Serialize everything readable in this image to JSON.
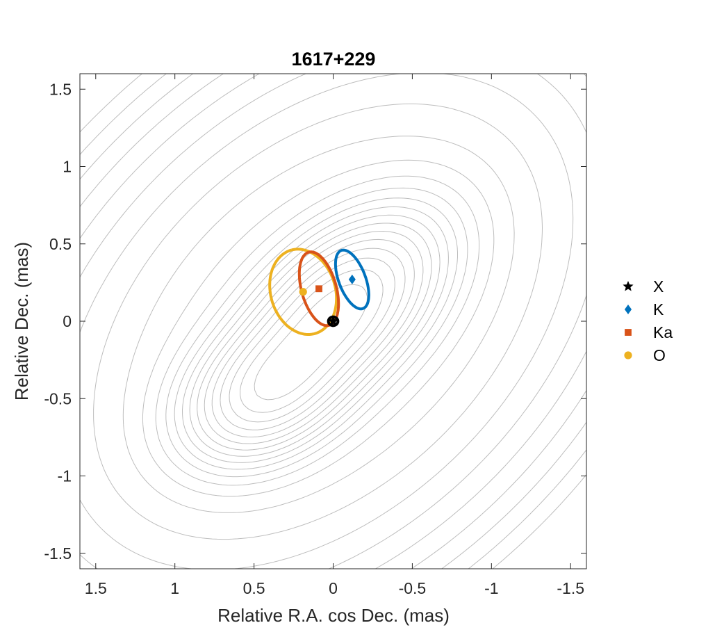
{
  "chart_data": {
    "type": "scatter",
    "title": "1617+229",
    "xlabel": "Relative R.A. cos Dec. (mas)",
    "ylabel": "Relative Dec. (mas)",
    "xlim": [
      1.6,
      -1.6
    ],
    "ylim": [
      -1.6,
      1.6
    ],
    "x_reversed": true,
    "xticks": [
      1.5,
      1,
      0.5,
      0,
      -0.5,
      -1,
      -1.5
    ],
    "xtick_labels": [
      "1.5",
      "1",
      "0.5",
      "0",
      "-0.5",
      "-1",
      "-1.5"
    ],
    "yticks": [
      1.5,
      1,
      0.5,
      0,
      -0.5,
      -1,
      -1.5
    ],
    "ytick_labels": [
      "1.5",
      "1",
      "0.5",
      "0",
      "-0.5",
      "-1",
      "-1.5"
    ],
    "grid": false,
    "legend_position": "outside-right",
    "contour_color": "#bdbdbd",
    "series": [
      {
        "name": "X",
        "marker": "star",
        "color": "#000000",
        "x": 0.0,
        "y": 0.0,
        "ellipse": {
          "a": 0.03,
          "b": 0.028,
          "angle": 0
        }
      },
      {
        "name": "K",
        "marker": "diamond",
        "color": "#0072BD",
        "x": -0.12,
        "y": 0.27,
        "ellipse": {
          "a": 0.2,
          "b": 0.085,
          "angle": 70
        }
      },
      {
        "name": "Ka",
        "marker": "square",
        "color": "#D95319",
        "x": 0.09,
        "y": 0.21,
        "ellipse": {
          "a": 0.245,
          "b": 0.11,
          "angle": 75
        }
      },
      {
        "name": "O",
        "marker": "circle",
        "color": "#EDB120",
        "x": 0.19,
        "y": 0.19,
        "ellipse": {
          "a": 0.28,
          "b": 0.205,
          "angle": 75
        }
      }
    ]
  }
}
